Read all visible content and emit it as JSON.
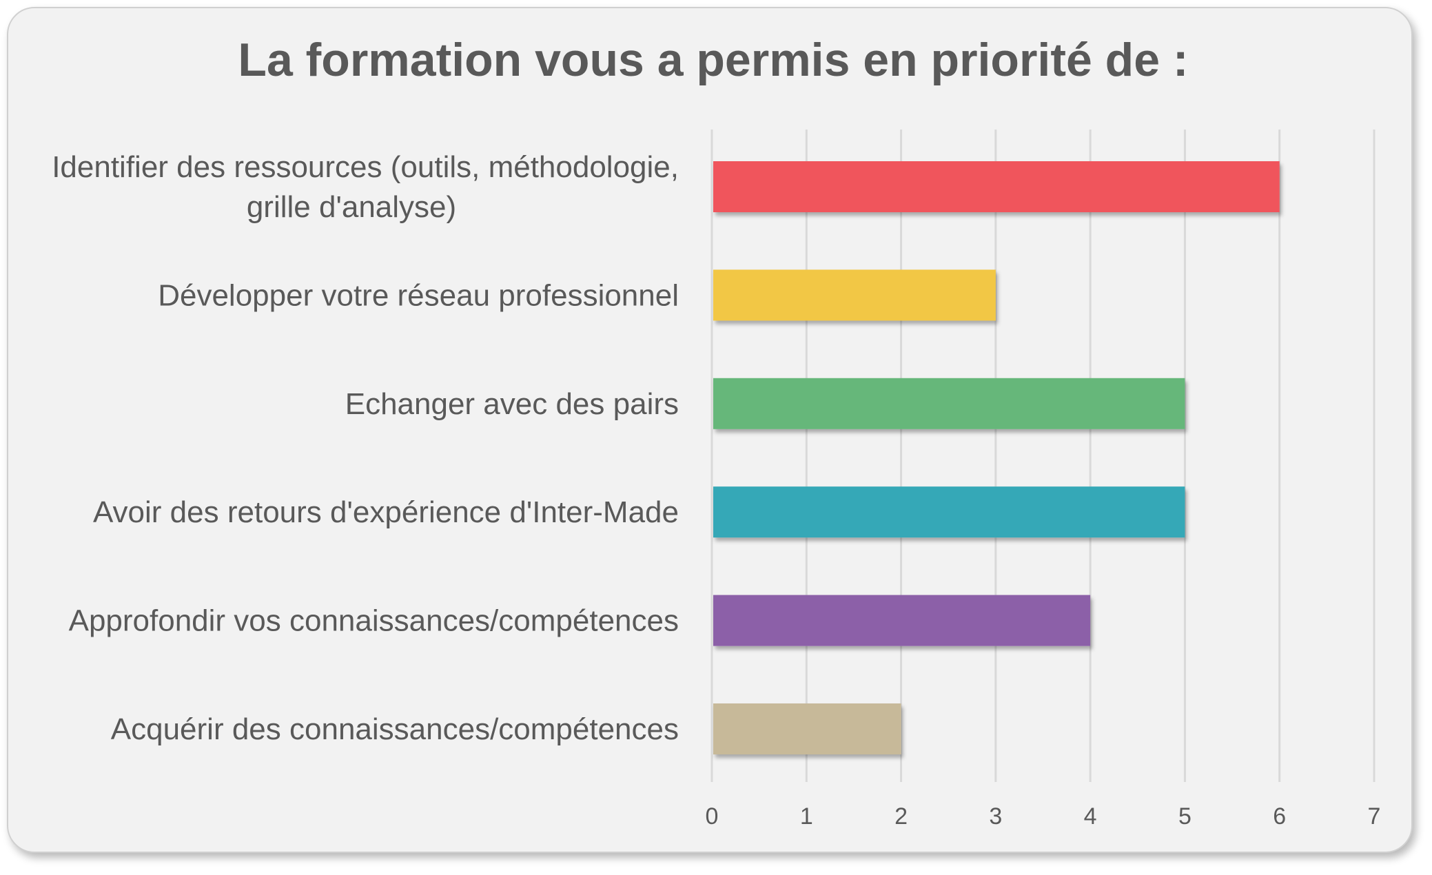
{
  "chart_data": {
    "type": "bar",
    "orientation": "horizontal",
    "title": "La formation vous a permis en priorité de :",
    "xlabel": "",
    "ylabel": "",
    "xlim": [
      0,
      7
    ],
    "ticks": [
      "0",
      "1",
      "2",
      "3",
      "4",
      "5",
      "6",
      "7"
    ],
    "grid": true,
    "legend": "none",
    "categories": [
      [
        "Identifier des ressources (outils, méthodologie,",
        "grille d'analyse)"
      ],
      [
        "Développer votre réseau professionnel"
      ],
      [
        "Echanger avec des pairs"
      ],
      [
        "Avoir des retours d'expérience d'Inter-Made"
      ],
      [
        "Approfondir vos connaissances/compétences"
      ],
      [
        "Acquérir des connaissances/compétences"
      ]
    ],
    "values": [
      6,
      3,
      5,
      5,
      4,
      2
    ],
    "colors": [
      "#f0545c",
      "#f2c744",
      "#66b77a",
      "#36a8b7",
      "#8c60a8",
      "#c7b999"
    ],
    "gridline_color": "#d9d9d9",
    "background": "#f2f2f2"
  }
}
